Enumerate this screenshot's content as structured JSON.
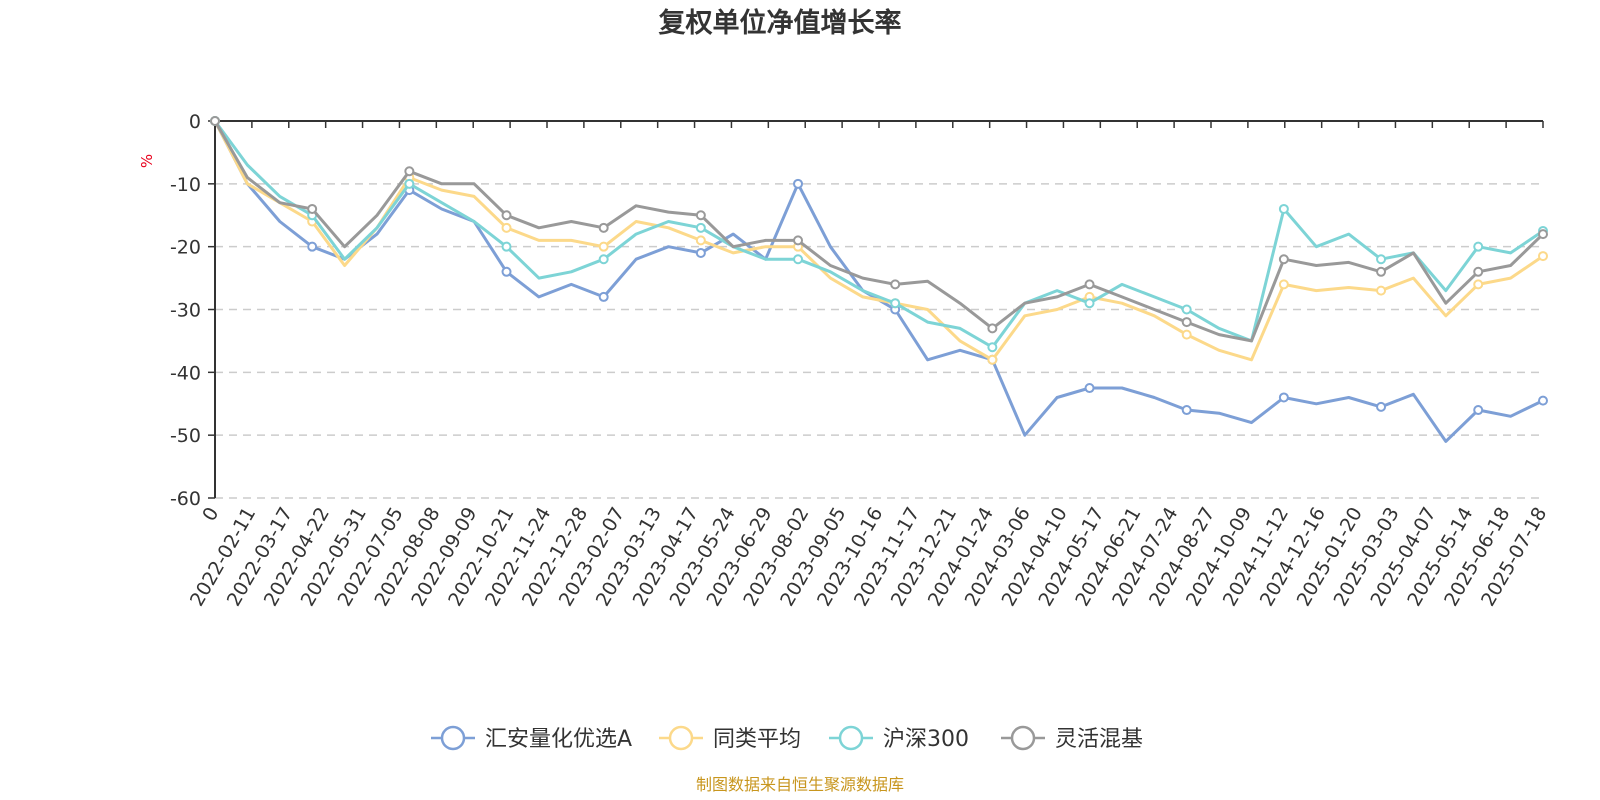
{
  "chart_data": {
    "type": "line",
    "title": "复权单位净值增长率",
    "y_unit": "%",
    "ylim": [
      -60,
      0
    ],
    "y_ticks": [
      0,
      -10,
      -20,
      -30,
      -40,
      -50,
      -60
    ],
    "x_ticks": [
      "0",
      "2022-02-11",
      "2022-03-17",
      "2022-04-22",
      "2022-05-31",
      "2022-07-05",
      "2022-08-08",
      "2022-09-09",
      "2022-10-21",
      "2022-11-24",
      "2022-12-28",
      "2023-02-07",
      "2023-03-13",
      "2023-04-17",
      "2023-05-24",
      "2023-06-29",
      "2023-08-02",
      "2023-09-05",
      "2023-10-16",
      "2023-11-17",
      "2023-12-21",
      "2024-01-24",
      "2024-03-06",
      "2024-04-10",
      "2024-05-17",
      "2024-06-21",
      "2024-07-24",
      "2024-08-27",
      "2024-10-09",
      "2024-11-12",
      "2024-12-16",
      "2025-01-20",
      "2025-03-03",
      "2025-04-07",
      "2025-05-14",
      "2025-06-18",
      "2025-07-18"
    ],
    "grid": true,
    "legend_position": "bottom",
    "series": [
      {
        "name": "汇安量化优选A",
        "color": "#7d9fd6",
        "values": [
          0,
          -10,
          -16,
          -20,
          -22,
          -18,
          -11,
          -14,
          -16,
          -24,
          -28,
          -26,
          -28,
          -22,
          -20,
          -21,
          -18,
          -22,
          -10,
          -20,
          -27,
          -30,
          -38,
          -36.5,
          -38,
          -50,
          -44,
          -42.5,
          -42.5,
          -44,
          -46,
          -46.5,
          -48,
          -44,
          -45,
          -44,
          -45.5,
          -43.5,
          -51,
          -46,
          -47,
          -44.5
        ]
      },
      {
        "name": "同类平均",
        "color": "#fcd98a",
        "values": [
          0,
          -10,
          -13,
          -16,
          -23,
          -17,
          -9,
          -11,
          -12,
          -17,
          -19,
          -19,
          -20,
          -16,
          -17,
          -19,
          -21,
          -20,
          -20,
          -25,
          -28,
          -29,
          -30,
          -35,
          -38,
          -31,
          -30,
          -28,
          -29,
          -31,
          -34,
          -36.5,
          -38,
          -26,
          -27,
          -26.5,
          -27,
          -25,
          -31,
          -26,
          -25,
          -21.5
        ]
      },
      {
        "name": "沪深300",
        "color": "#7dd4d6",
        "values": [
          0,
          -7,
          -12,
          -15,
          -22,
          -17,
          -10,
          -13,
          -16,
          -20,
          -25,
          -24,
          -22,
          -18,
          -16,
          -17,
          -20,
          -22,
          -22,
          -24,
          -27,
          -29,
          -32,
          -33,
          -36,
          -29,
          -27,
          -29,
          -26,
          -28,
          -30,
          -33,
          -35,
          -14,
          -20,
          -18,
          -22,
          -21,
          -27,
          -20,
          -21,
          -17.5
        ]
      },
      {
        "name": "灵活混基",
        "color": "#999999",
        "values": [
          0,
          -9,
          -13,
          -14,
          -20,
          -15,
          -8,
          -10,
          -10,
          -15,
          -17,
          -16,
          -17,
          -13.5,
          -14.5,
          -15,
          -20,
          -19,
          -19,
          -23,
          -25,
          -26,
          -25.5,
          -29,
          -33,
          -29,
          -28,
          -26,
          -28,
          -30,
          -32,
          -34,
          -35,
          -22,
          -23,
          -22.5,
          -24,
          -21,
          -29,
          -24,
          -23,
          -18
        ]
      }
    ]
  },
  "source_text": "制图数据来自恒生聚源数据库"
}
